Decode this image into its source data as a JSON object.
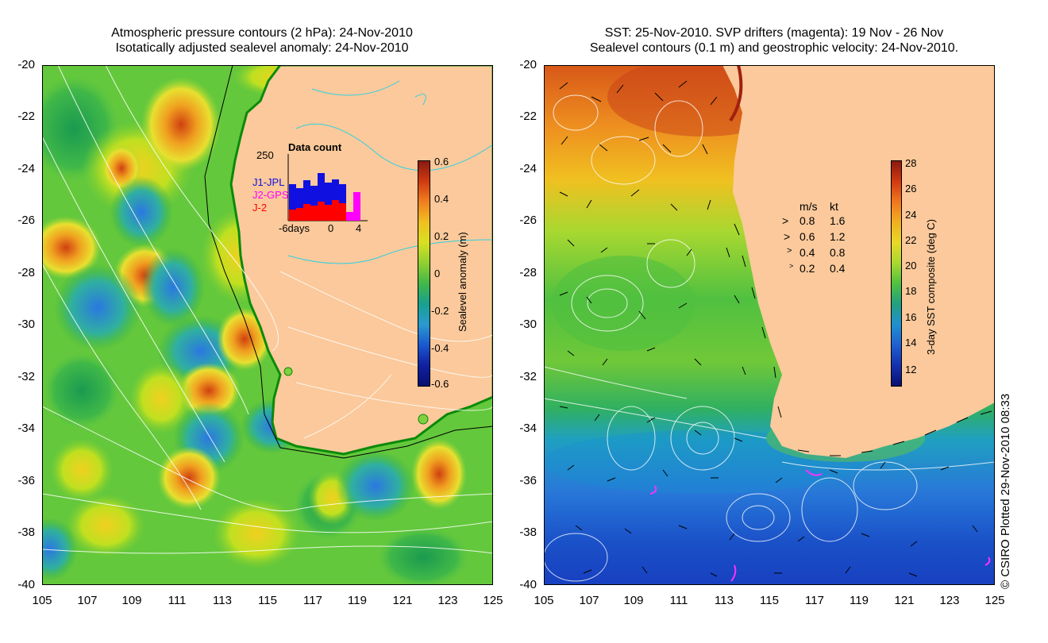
{
  "left_panel": {
    "title_line1": "Atmospheric pressure contours (2 hPa): 24-Nov-2010",
    "title_line2": "Isotatically adjusted sealevel anomaly: 24-Nov-2010",
    "y_ticks": [
      "-20",
      "-22",
      "-24",
      "-26",
      "-28",
      "-30",
      "-32",
      "-34",
      "-36",
      "-38",
      "-40"
    ],
    "x_ticks": [
      "105",
      "107",
      "109",
      "111",
      "113",
      "115",
      "117",
      "119",
      "121",
      "123",
      "125"
    ],
    "colorbar": {
      "title": "Sealevel anomaly (m)",
      "ticks": [
        "0.6",
        "0.4",
        "0.2",
        "0",
        "-0.2",
        "-0.4",
        "-0.6"
      ]
    },
    "inset": {
      "title": "Data count",
      "ymax_label": "250",
      "x_labels": [
        "-6days",
        "0",
        "4"
      ],
      "legend": [
        {
          "label": "J1-JPL",
          "color": "#1010e0"
        },
        {
          "label": "J2-GPS",
          "color": "#ff00ff"
        },
        {
          "label": "J-2",
          "color": "#ff0000"
        }
      ]
    }
  },
  "right_panel": {
    "title_line1": "SST: 25-Nov-2010. SVP drifters (magenta): 19 Nov - 26 Nov",
    "title_line2": "Sealevel contours (0.1 m) and geostrophic velocity: 24-Nov-2010.",
    "y_ticks": [
      "-20",
      "-22",
      "-24",
      "-26",
      "-28",
      "-30",
      "-32",
      "-34",
      "-36",
      "-38",
      "-40"
    ],
    "x_ticks": [
      "105",
      "107",
      "109",
      "111",
      "113",
      "115",
      "117",
      "119",
      "121",
      "123",
      "125"
    ],
    "colorbar": {
      "title": "3-day SST composite (deg C)",
      "ticks": [
        "28",
        "26",
        "24",
        "22",
        "20",
        "18",
        "16",
        "14",
        "12"
      ]
    },
    "velocity_legend": {
      "header_ms": "m/s",
      "header_kt": "kt",
      "rows": [
        {
          "ms": "0.8",
          "kt": "1.6"
        },
        {
          "ms": "0.6",
          "kt": "1.2"
        },
        {
          "ms": "0.4",
          "kt": "0.8"
        },
        {
          "ms": "0.2",
          "kt": "0.4"
        }
      ]
    }
  },
  "credit": "© CSIRO Plotted 29-Nov-2010 08:33",
  "colors": {
    "land": "#fbc99b",
    "sla_zero": "#3cb43c",
    "sst_warm": "#c83c14",
    "sst_cold": "#1440c8"
  }
}
